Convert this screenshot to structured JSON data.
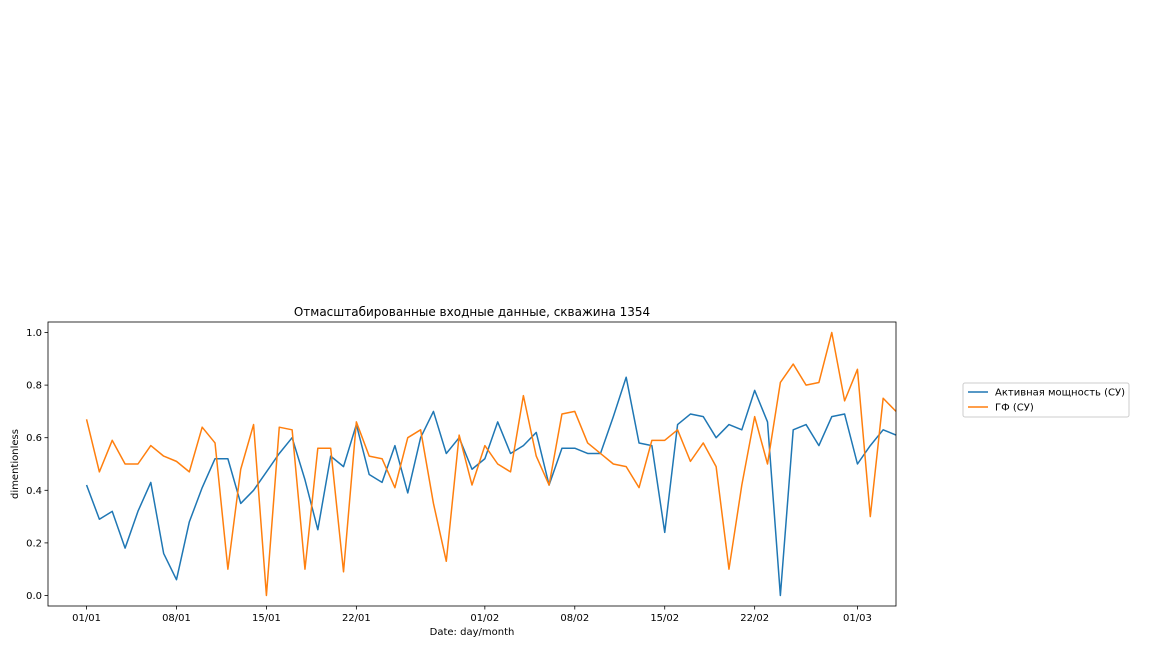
{
  "chart_data": {
    "type": "line",
    "title": "Отмасштабированные входные данные, скважина 1354",
    "xlabel": "Date: day/month",
    "ylabel": "dimentionless",
    "x_axis": "date",
    "xlim": [
      "2019-12-29",
      "2020-03-04"
    ],
    "ylim": [
      -0.04,
      1.04
    ],
    "yticks": [
      0.0,
      0.2,
      0.4,
      0.6,
      0.8,
      1.0
    ],
    "ytick_labels": [
      "0.0",
      "0.2",
      "0.4",
      "0.6",
      "0.8",
      "1.0"
    ],
    "xtick_labels": [
      {
        "date": "2020-01-01",
        "label": "01/01"
      },
      {
        "date": "2020-01-08",
        "label": "08/01"
      },
      {
        "date": "2020-01-15",
        "label": "15/01"
      },
      {
        "date": "2020-01-22",
        "label": "22/01"
      },
      {
        "date": "2020-02-01",
        "label": "01/02"
      },
      {
        "date": "2020-02-08",
        "label": "08/02"
      },
      {
        "date": "2020-02-15",
        "label": "15/02"
      },
      {
        "date": "2020-02-22",
        "label": "22/02"
      },
      {
        "date": "2020-03-01",
        "label": "01/03"
      }
    ],
    "grid": false,
    "legend_position": "right, outside plot",
    "series": [
      {
        "name": "Активная мощность (СУ)",
        "color": "#1f77b4",
        "points": [
          [
            "2020-01-01",
            0.42
          ],
          [
            "2020-01-02",
            0.29
          ],
          [
            "2020-01-03",
            0.32
          ],
          [
            "2020-01-04",
            0.18
          ],
          [
            "2020-01-05",
            0.32
          ],
          [
            "2020-01-06",
            0.43
          ],
          [
            "2020-01-07",
            0.16
          ],
          [
            "2020-01-08",
            0.06
          ],
          [
            "2020-01-09",
            0.28
          ],
          [
            "2020-01-10",
            0.41
          ],
          [
            "2020-01-11",
            0.52
          ],
          [
            "2020-01-12",
            0.52
          ],
          [
            "2020-01-13",
            0.35
          ],
          [
            "2020-01-14",
            0.4
          ],
          [
            "2020-01-15",
            0.47
          ],
          [
            "2020-01-16",
            0.54
          ],
          [
            "2020-01-17",
            0.6
          ],
          [
            "2020-01-18",
            0.44
          ],
          [
            "2020-01-19",
            0.25
          ],
          [
            "2020-01-20",
            0.53
          ],
          [
            "2020-01-21",
            0.49
          ],
          [
            "2020-01-22",
            0.65
          ],
          [
            "2020-01-23",
            0.46
          ],
          [
            "2020-01-24",
            0.43
          ],
          [
            "2020-01-25",
            0.57
          ],
          [
            "2020-01-26",
            0.39
          ],
          [
            "2020-01-27",
            0.6
          ],
          [
            "2020-01-28",
            0.7
          ],
          [
            "2020-01-29",
            0.54
          ],
          [
            "2020-01-30",
            0.6
          ],
          [
            "2020-01-31",
            0.48
          ],
          [
            "2020-02-01",
            0.52
          ],
          [
            "2020-02-02",
            0.66
          ],
          [
            "2020-02-03",
            0.54
          ],
          [
            "2020-02-04",
            0.57
          ],
          [
            "2020-02-05",
            0.62
          ],
          [
            "2020-02-06",
            0.42
          ],
          [
            "2020-02-07",
            0.56
          ],
          [
            "2020-02-08",
            0.56
          ],
          [
            "2020-02-09",
            0.54
          ],
          [
            "2020-02-10",
            0.54
          ],
          [
            "2020-02-11",
            0.68
          ],
          [
            "2020-02-12",
            0.83
          ],
          [
            "2020-02-13",
            0.58
          ],
          [
            "2020-02-14",
            0.57
          ],
          [
            "2020-02-15",
            0.24
          ],
          [
            "2020-02-16",
            0.65
          ],
          [
            "2020-02-17",
            0.69
          ],
          [
            "2020-02-18",
            0.68
          ],
          [
            "2020-02-19",
            0.6
          ],
          [
            "2020-02-20",
            0.65
          ],
          [
            "2020-02-21",
            0.63
          ],
          [
            "2020-02-22",
            0.78
          ],
          [
            "2020-02-23",
            0.66
          ],
          [
            "2020-02-24",
            0.0
          ],
          [
            "2020-02-25",
            0.63
          ],
          [
            "2020-02-26",
            0.65
          ],
          [
            "2020-02-27",
            0.57
          ],
          [
            "2020-02-28",
            0.68
          ],
          [
            "2020-02-29",
            0.69
          ],
          [
            "2020-03-01",
            0.5
          ],
          [
            "2020-03-02",
            0.57
          ],
          [
            "2020-03-03",
            0.63
          ],
          [
            "2020-03-04",
            0.61
          ]
        ]
      },
      {
        "name": "ГФ (СУ)",
        "color": "#ff7f0e",
        "points": [
          [
            "2020-01-01",
            0.67
          ],
          [
            "2020-01-02",
            0.47
          ],
          [
            "2020-01-03",
            0.59
          ],
          [
            "2020-01-04",
            0.5
          ],
          [
            "2020-01-05",
            0.5
          ],
          [
            "2020-01-06",
            0.57
          ],
          [
            "2020-01-07",
            0.53
          ],
          [
            "2020-01-08",
            0.51
          ],
          [
            "2020-01-09",
            0.47
          ],
          [
            "2020-01-10",
            0.64
          ],
          [
            "2020-01-11",
            0.58
          ],
          [
            "2020-01-12",
            0.1
          ],
          [
            "2020-01-13",
            0.48
          ],
          [
            "2020-01-14",
            0.65
          ],
          [
            "2020-01-15",
            0.0
          ],
          [
            "2020-01-16",
            0.64
          ],
          [
            "2020-01-17",
            0.63
          ],
          [
            "2020-01-18",
            0.1
          ],
          [
            "2020-01-19",
            0.56
          ],
          [
            "2020-01-20",
            0.56
          ],
          [
            "2020-01-21",
            0.09
          ],
          [
            "2020-01-22",
            0.66
          ],
          [
            "2020-01-23",
            0.53
          ],
          [
            "2020-01-24",
            0.52
          ],
          [
            "2020-01-25",
            0.41
          ],
          [
            "2020-01-26",
            0.6
          ],
          [
            "2020-01-27",
            0.63
          ],
          [
            "2020-01-28",
            0.35
          ],
          [
            "2020-01-29",
            0.13
          ],
          [
            "2020-01-30",
            0.61
          ],
          [
            "2020-01-31",
            0.42
          ],
          [
            "2020-02-01",
            0.57
          ],
          [
            "2020-02-02",
            0.5
          ],
          [
            "2020-02-03",
            0.47
          ],
          [
            "2020-02-04",
            0.76
          ],
          [
            "2020-02-05",
            0.53
          ],
          [
            "2020-02-06",
            0.42
          ],
          [
            "2020-02-07",
            0.69
          ],
          [
            "2020-02-08",
            0.7
          ],
          [
            "2020-02-09",
            0.58
          ],
          [
            "2020-02-10",
            0.54
          ],
          [
            "2020-02-11",
            0.5
          ],
          [
            "2020-02-12",
            0.49
          ],
          [
            "2020-02-13",
            0.41
          ],
          [
            "2020-02-14",
            0.59
          ],
          [
            "2020-02-15",
            0.59
          ],
          [
            "2020-02-16",
            0.63
          ],
          [
            "2020-02-17",
            0.51
          ],
          [
            "2020-02-18",
            0.58
          ],
          [
            "2020-02-19",
            0.49
          ],
          [
            "2020-02-20",
            0.1
          ],
          [
            "2020-02-21",
            0.42
          ],
          [
            "2020-02-22",
            0.68
          ],
          [
            "2020-02-23",
            0.5
          ],
          [
            "2020-02-24",
            0.81
          ],
          [
            "2020-02-25",
            0.88
          ],
          [
            "2020-02-26",
            0.8
          ],
          [
            "2020-02-27",
            0.81
          ],
          [
            "2020-02-28",
            1.0
          ],
          [
            "2020-02-29",
            0.74
          ],
          [
            "2020-03-01",
            0.86
          ],
          [
            "2020-03-02",
            0.3
          ],
          [
            "2020-03-03",
            0.75
          ],
          [
            "2020-03-04",
            0.7
          ]
        ]
      }
    ]
  }
}
